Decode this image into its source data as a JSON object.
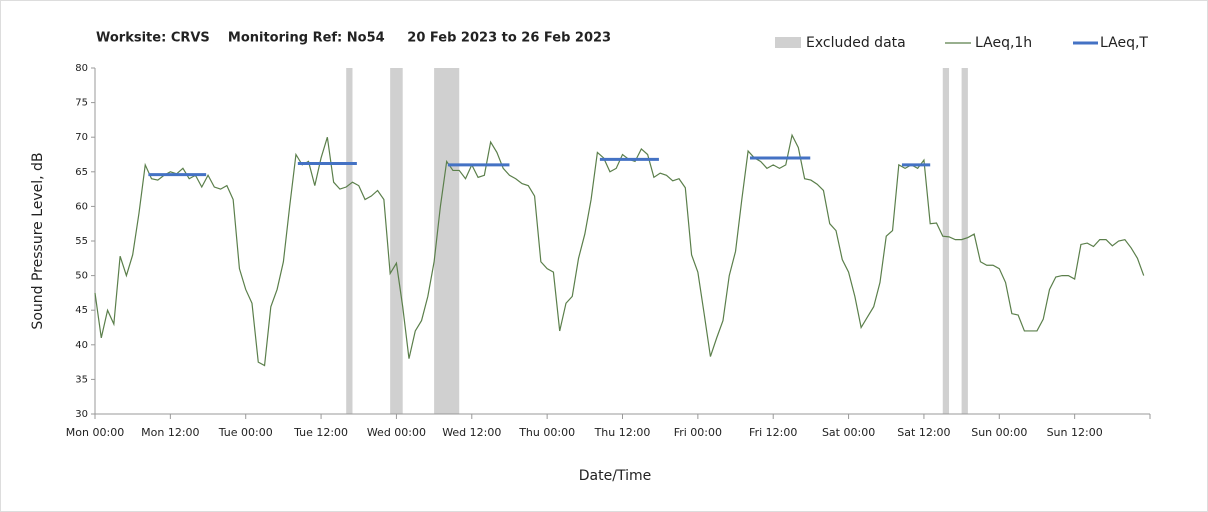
{
  "chart_data": {
    "type": "line",
    "title": "Worksite: CRVS    Monitoring Ref: No54     20 Feb 2023 to 26 Feb 2023",
    "xlabel": "Date/Time",
    "ylabel": "Sound Pressure Level, dB",
    "xlim": [
      0,
      168
    ],
    "xticks": [
      {
        "value": 0,
        "label": "Mon 00:00"
      },
      {
        "value": 12,
        "label": "Mon 12:00"
      },
      {
        "value": 24,
        "label": "Tue 00:00"
      },
      {
        "value": 36,
        "label": "Tue 12:00"
      },
      {
        "value": 48,
        "label": "Wed 00:00"
      },
      {
        "value": 60,
        "label": "Wed 12:00"
      },
      {
        "value": 72,
        "label": "Thu 00:00"
      },
      {
        "value": 84,
        "label": "Thu 12:00"
      },
      {
        "value": 96,
        "label": "Fri 00:00"
      },
      {
        "value": 108,
        "label": "Fri 12:00"
      },
      {
        "value": 120,
        "label": "Sat 00:00"
      },
      {
        "value": 132,
        "label": "Sat 12:00"
      },
      {
        "value": 144,
        "label": "Sun 00:00"
      },
      {
        "value": 156,
        "label": "Sun 12:00"
      },
      {
        "value": 168,
        "label": ""
      }
    ],
    "ylim": [
      30,
      80
    ],
    "yticks": [
      30,
      35,
      40,
      45,
      50,
      55,
      60,
      65,
      70,
      75,
      80
    ],
    "grid": false,
    "x": [
      0,
      1,
      2,
      3,
      4,
      5,
      6,
      7,
      8,
      9,
      10,
      11,
      12,
      13,
      14,
      15,
      16,
      17,
      18,
      19,
      20,
      21,
      22,
      23,
      24,
      25,
      26,
      27,
      28,
      29,
      30,
      31,
      32,
      33,
      34,
      35,
      36,
      37,
      38,
      39,
      40,
      41,
      42,
      43,
      44,
      45,
      46,
      47,
      48,
      49,
      50,
      51,
      52,
      53,
      54,
      55,
      56,
      57,
      58,
      59,
      60,
      61,
      62,
      63,
      64,
      65,
      66,
      67,
      68,
      69,
      70,
      71,
      72,
      73,
      74,
      75,
      76,
      77,
      78,
      79,
      80,
      81,
      82,
      83,
      84,
      85,
      86,
      87,
      88,
      89,
      90,
      91,
      92,
      93,
      94,
      95,
      96,
      97,
      98,
      99,
      100,
      101,
      102,
      103,
      104,
      105,
      106,
      107,
      108,
      109,
      110,
      111,
      112,
      113,
      114,
      115,
      116,
      117,
      118,
      119,
      120,
      121,
      122,
      123,
      124,
      125,
      126,
      127,
      128,
      129,
      130,
      131,
      132,
      133,
      134,
      135,
      136,
      137,
      138,
      139,
      140,
      141,
      142,
      143,
      144,
      145,
      146,
      147,
      148,
      149,
      150,
      151,
      152,
      153,
      154,
      155,
      156,
      157,
      158,
      159,
      160,
      161,
      162,
      163,
      164,
      165,
      166,
      167
    ],
    "series": [
      {
        "name": "LAeq,1h",
        "color": "#5b7f4b",
        "values": [
          47.5,
          41,
          45,
          43,
          52.8,
          50,
          53,
          59,
          66,
          64,
          63.8,
          64.5,
          65,
          64.7,
          65.5,
          64,
          64.5,
          62.8,
          64.5,
          62.8,
          62.5,
          63,
          61,
          51,
          48,
          46,
          37.5,
          37,
          45.5,
          48,
          52,
          60,
          67.5,
          66,
          66.5,
          63,
          67,
          70,
          63.5,
          62.5,
          62.8,
          63.5,
          63,
          61,
          61.5,
          62.3,
          61,
          50.3,
          51.8,
          45.5,
          38,
          42,
          43.5,
          47,
          52,
          60,
          66.5,
          65.2,
          65.2,
          64,
          66,
          64.2,
          64.5,
          69.3,
          67.8,
          65.5,
          64.5,
          64,
          63.3,
          63,
          61.5,
          52,
          51,
          50.5,
          42,
          46,
          47,
          52.5,
          56,
          61,
          67.8,
          67,
          65,
          65.5,
          67.5,
          66.8,
          66.5,
          68.3,
          67.5,
          64.2,
          64.8,
          64.5,
          63.7,
          64,
          62.7,
          53,
          50.5,
          44.5,
          38.3,
          41,
          43.5,
          50,
          53.5,
          61,
          68,
          67,
          66.5,
          65.5,
          66,
          65.5,
          66,
          70.3,
          68.5,
          64,
          63.8,
          63.2,
          62.3,
          57.5,
          56.5,
          52.3,
          50.5,
          47,
          42.5,
          44,
          45.5,
          49,
          55.7,
          56.5,
          66,
          65.5,
          66,
          65.5,
          66.7,
          57.5,
          57.6,
          55.7,
          55.6,
          55.2,
          55.2,
          55.5,
          56,
          52,
          51.5,
          51.5,
          51,
          49,
          44.5,
          44.3,
          42,
          42,
          42,
          43.7,
          48,
          49.8,
          50,
          50,
          49.5,
          54.5,
          54.7,
          54.2,
          55.2,
          55.2,
          54.3,
          55,
          55.2,
          54,
          52.5,
          50
        ]
      }
    ],
    "averages": {
      "name": "LAeq,T",
      "color": "#4472c4",
      "segments": [
        {
          "start": 8.5,
          "end": 17.7,
          "value": 64.6
        },
        {
          "start": 32.3,
          "end": 41.7,
          "value": 66.2
        },
        {
          "start": 56.2,
          "end": 66,
          "value": 66
        },
        {
          "start": 80.4,
          "end": 89.8,
          "value": 66.8
        },
        {
          "start": 104.3,
          "end": 113.9,
          "value": 67
        },
        {
          "start": 128.5,
          "end": 133,
          "value": 66
        }
      ]
    },
    "excluded": {
      "name": "Excluded data",
      "color": "#d0d0d0",
      "ranges": [
        [
          40,
          41
        ],
        [
          47,
          49
        ],
        [
          54,
          58
        ],
        [
          135,
          136
        ],
        [
          138,
          139
        ]
      ]
    }
  }
}
